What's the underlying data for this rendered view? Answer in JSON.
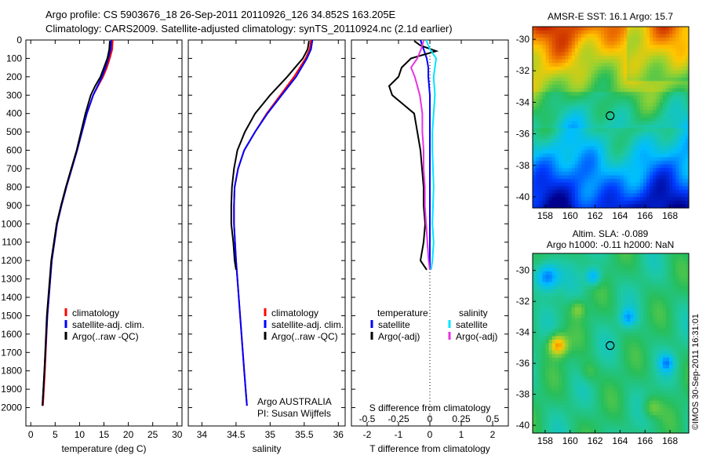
{
  "header": {
    "line1": "Argo profile: CS 5903676_18 26-Sep-2011 20110926_126 34.852S 163.205E",
    "line2": "Climatology: CARS2009. Satellite-adjusted climatology: synTS_20110924.nc (2.1d earlier)"
  },
  "colors": {
    "climatology": "#ff0000",
    "satellite": "#0000ff",
    "argo": "#000000",
    "sal_satellite": "#00e5ff",
    "sal_argo": "#e632e6"
  },
  "chart_data": [
    {
      "type": "line",
      "panel": "temperature",
      "xlabel": "temperature (deg C)",
      "ylabel": "",
      "xlim": [
        -1,
        31
      ],
      "ylim": [
        2100,
        0
      ],
      "xticks": [
        "0",
        "5",
        "10",
        "15",
        "20",
        "25",
        "30"
      ],
      "yticks": [
        "0",
        "100",
        "200",
        "300",
        "400",
        "500",
        "600",
        "700",
        "800",
        "900",
        "1000",
        "1100",
        "1200",
        "1300",
        "1400",
        "1500",
        "1600",
        "1700",
        "1800",
        "1900",
        "2000"
      ],
      "legend": [
        "climatology",
        "satellite-adj. clim.",
        "Argo(..raw -QC)"
      ],
      "series": [
        {
          "name": "climatology",
          "color": "#ff0000",
          "depth": [
            0,
            50,
            100,
            150,
            200,
            250,
            300,
            400,
            500,
            600,
            700,
            800,
            900,
            1000,
            1200,
            1500,
            1800,
            1990
          ],
          "values": [
            16.8,
            16.7,
            16.2,
            15.6,
            14.8,
            13.8,
            12.8,
            11.5,
            10.5,
            9.5,
            8.4,
            7.3,
            6.3,
            5.4,
            4.3,
            3.4,
            2.9,
            2.5
          ]
        },
        {
          "name": "satellite-adj. clim.",
          "color": "#0000ff",
          "depth": [
            0,
            50,
            100,
            150,
            200,
            250,
            300,
            400,
            500,
            600,
            700,
            800,
            900,
            1000,
            1200,
            1500,
            1800,
            1990
          ],
          "values": [
            16.5,
            16.4,
            15.9,
            15.3,
            14.6,
            13.7,
            12.8,
            11.5,
            10.5,
            9.5,
            8.4,
            7.3,
            6.3,
            5.4,
            4.3,
            3.4,
            2.8,
            2.4
          ]
        },
        {
          "name": "Argo(..raw -QC)",
          "color": "#000000",
          "depth": [
            5,
            50,
            100,
            150,
            200,
            250,
            300,
            400,
            500,
            600,
            700,
            800,
            900,
            1000,
            1200,
            1500,
            1800,
            1990
          ],
          "values": [
            16.2,
            16.1,
            15.7,
            15.0,
            14.3,
            13.2,
            12.3,
            11.2,
            10.3,
            9.4,
            8.3,
            7.2,
            6.2,
            5.3,
            4.2,
            3.3,
            2.8,
            2.4
          ]
        }
      ]
    },
    {
      "type": "line",
      "panel": "salinity",
      "xlabel": "salinity",
      "ylabel": "",
      "xlim": [
        33.8,
        36.1
      ],
      "ylim": [
        2100,
        0
      ],
      "xticks": [
        "34",
        "34.5",
        "35",
        "35.5",
        "36"
      ],
      "legend": [
        "climatology",
        "satellite-adj. clim.",
        "Argo(..raw -QC)"
      ],
      "annotation": [
        "Argo AUSTRALIA",
        "PI: Susan Wijffels"
      ],
      "series": [
        {
          "name": "climatology",
          "color": "#ff0000",
          "depth": [
            0,
            50,
            100,
            200,
            300,
            400,
            500,
            600,
            700,
            800,
            900,
            1000,
            1200,
            1500,
            1800,
            1990
          ],
          "values": [
            35.6,
            35.58,
            35.52,
            35.35,
            35.15,
            34.95,
            34.78,
            34.62,
            34.53,
            34.48,
            34.47,
            34.47,
            34.5,
            34.56,
            34.62,
            34.66
          ]
        },
        {
          "name": "satellite-adj. clim.",
          "color": "#0000ff",
          "depth": [
            0,
            50,
            100,
            200,
            300,
            400,
            500,
            600,
            700,
            800,
            900,
            1000,
            1200,
            1500,
            1800,
            1990
          ],
          "values": [
            35.62,
            35.6,
            35.54,
            35.38,
            35.17,
            34.96,
            34.78,
            34.62,
            34.53,
            34.48,
            34.47,
            34.47,
            34.5,
            34.56,
            34.62,
            34.66
          ]
        },
        {
          "name": "Argo(..raw -QC)",
          "color": "#000000",
          "depth": [
            5,
            50,
            100,
            200,
            300,
            400,
            500,
            600,
            700,
            800,
            900,
            1000,
            1100,
            1200,
            1250
          ],
          "values": [
            35.57,
            35.55,
            35.48,
            35.25,
            35.0,
            34.78,
            34.63,
            34.52,
            34.47,
            34.44,
            34.43,
            34.43,
            34.46,
            34.48,
            34.5
          ]
        }
      ]
    },
    {
      "type": "line",
      "panel": "difference",
      "xlabel": "T difference from climatology",
      "xlabel_top": "S difference from climatology",
      "xlim": [
        -2.5,
        2.5
      ],
      "ylim": [
        2100,
        0
      ],
      "xticks_T": [
        "-2",
        "-1",
        "0",
        "1",
        "2"
      ],
      "xticks_S": [
        "-0.5",
        "-0.25",
        "0",
        "0.25",
        "0.5"
      ],
      "legend_left_title": "temperature",
      "legend_right_title": "salinity",
      "legend_left": [
        "satellite",
        "Argo(-adj)"
      ],
      "legend_right": [
        "satellite",
        "Argo(-adj)"
      ],
      "series": [
        {
          "name": "temperature satellite",
          "color": "#0000ff",
          "depth": [
            0,
            50,
            100,
            150,
            200,
            300,
            400,
            500,
            600,
            800,
            1000,
            1200,
            1250
          ],
          "values": [
            -0.3,
            -0.2,
            -0.1,
            -0.05,
            -0.05,
            0,
            0,
            0,
            0,
            0,
            0,
            0,
            0
          ]
        },
        {
          "name": "temperature Argo(-adj)",
          "color": "#000000",
          "depth": [
            5,
            30,
            60,
            100,
            150,
            200,
            250,
            300,
            400,
            500,
            600,
            700,
            800,
            900,
            1000,
            1100,
            1200,
            1250
          ],
          "values": [
            -0.5,
            -0.3,
            0.2,
            -0.6,
            -0.9,
            -1.0,
            -1.3,
            -1.2,
            -0.5,
            -0.4,
            -0.3,
            -0.25,
            -0.2,
            -0.2,
            -0.15,
            -0.2,
            -0.3,
            -0.1
          ]
        },
        {
          "name": "salinity satellite",
          "color": "#00e5ff",
          "depth": [
            0,
            50,
            100,
            200,
            300,
            400,
            500,
            600,
            800,
            1000,
            1100,
            1200,
            1250
          ],
          "values": [
            -0.03,
            0.0,
            0.05,
            0.03,
            0.04,
            0.03,
            0.02,
            0.02,
            0.03,
            0.02,
            0.03,
            0.02,
            0.01
          ]
        },
        {
          "name": "salinity Argo(-adj)",
          "color": "#e632e6",
          "depth": [
            5,
            50,
            100,
            150,
            200,
            300,
            400,
            500,
            600,
            700,
            800,
            900,
            1000,
            1100,
            1200,
            1250
          ],
          "values": [
            -0.05,
            -0.07,
            -0.1,
            -0.15,
            -0.12,
            -0.08,
            -0.06,
            -0.06,
            -0.05,
            -0.05,
            -0.04,
            -0.04,
            -0.03,
            -0.02,
            -0.01,
            0.0
          ]
        }
      ]
    },
    {
      "type": "heatmap",
      "panel": "sst_map",
      "title": "AMSR-E SST: 16.1  Argo: 15.7",
      "xlim": [
        157,
        169.5
      ],
      "ylim": [
        -40.7,
        -29.2
      ],
      "xticks": [
        "158",
        "160",
        "162",
        "164",
        "166",
        "168"
      ],
      "yticks": [
        "-30",
        "-32",
        "-34",
        "-36",
        "-38",
        "-40"
      ],
      "profile_location": [
        163.205,
        -34.852
      ]
    },
    {
      "type": "heatmap",
      "panel": "sla_map",
      "title_line1": "Altim. SLA: -0.089",
      "title_line2": "Argo h1000: -0.11  h2000: NaN",
      "xlim": [
        157,
        169.5
      ],
      "ylim": [
        -40.5,
        -28.9
      ],
      "xticks": [
        "158",
        "160",
        "162",
        "164",
        "166",
        "168"
      ],
      "yticks": [
        "-30",
        "-32",
        "-34",
        "-36",
        "-38",
        "-40"
      ],
      "profile_location": [
        163.205,
        -34.852
      ]
    }
  ],
  "footer": {
    "stamp": "©IMOS 30-Sep-2011 16:31:01"
  }
}
